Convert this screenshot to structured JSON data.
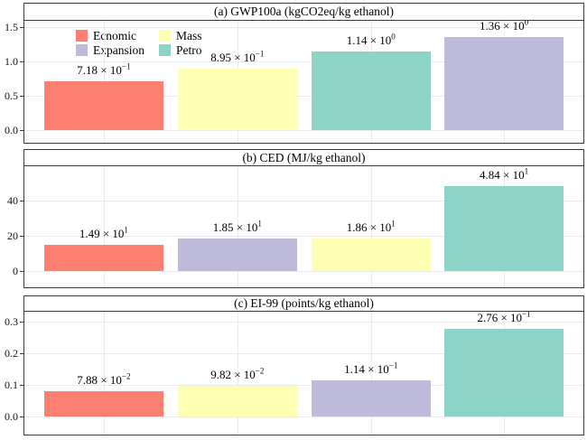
{
  "figure": {
    "background": "#ffffff",
    "value_label_times": " × 10",
    "colors_by_category": {
      "Ecnomic": "#FB8072",
      "Expansion": "#BEBADA",
      "Mass": "#FFFFB3",
      "Petro": "#8DD3C7"
    },
    "legend": {
      "position": "inside top-left of panel a",
      "items": [
        {
          "label": "Ecnomic",
          "color": "#FB8072"
        },
        {
          "label": "Mass",
          "color": "#FFFFB3"
        },
        {
          "label": "Expansion",
          "color": "#BEBADA"
        },
        {
          "label": "Petro",
          "color": "#8DD3C7"
        }
      ]
    }
  },
  "chart_data": [
    {
      "type": "bar",
      "title": "(a) GWP100a (kgCO2eq/kg ethanol)",
      "categories": [
        "Ecnomic",
        "Mass",
        "Petro",
        "Expansion"
      ],
      "values": [
        0.718,
        0.895,
        1.14,
        1.36
      ],
      "bar_labels": [
        {
          "mantissa": "7.18",
          "exponent": "-1"
        },
        {
          "mantissa": "8.95",
          "exponent": "-1"
        },
        {
          "mantissa": "1.14",
          "exponent": "0"
        },
        {
          "mantissa": "1.36",
          "exponent": "0"
        }
      ],
      "xlabel": "",
      "ylabel": "",
      "yticks": [
        0,
        0.5,
        1.0,
        1.5
      ],
      "ytick_labels": [
        "0.0",
        "0.5",
        "1.0",
        "1.5"
      ],
      "ylim": [
        -0.18,
        1.59
      ],
      "grid": true,
      "legend_shown": true
    },
    {
      "type": "bar",
      "title": "(b) CED (MJ/kg ethanol)",
      "categories": [
        "Ecnomic",
        "Expansion",
        "Mass",
        "Petro"
      ],
      "values": [
        14.9,
        18.5,
        18.6,
        48.4
      ],
      "bar_labels": [
        {
          "mantissa": "1.49",
          "exponent": "1"
        },
        {
          "mantissa": "1.85",
          "exponent": "1"
        },
        {
          "mantissa": "1.86",
          "exponent": "1"
        },
        {
          "mantissa": "4.84",
          "exponent": "1"
        }
      ],
      "xlabel": "",
      "ylabel": "",
      "yticks": [
        0,
        20,
        40
      ],
      "ytick_labels": [
        "0",
        "20",
        "40"
      ],
      "ylim": [
        -9.4,
        59.7
      ],
      "grid": true,
      "legend_shown": false
    },
    {
      "type": "bar",
      "title": "(c) EI-99 (points/kg ethanol)",
      "categories": [
        "Ecnomic",
        "Mass",
        "Expansion",
        "Petro"
      ],
      "values": [
        0.0788,
        0.0982,
        0.114,
        0.276
      ],
      "bar_labels": [
        {
          "mantissa": "7.88",
          "exponent": "-2"
        },
        {
          "mantissa": "9.82",
          "exponent": "-2"
        },
        {
          "mantissa": "1.14",
          "exponent": "-1"
        },
        {
          "mantissa": "2.76",
          "exponent": "-1"
        }
      ],
      "xlabel": "",
      "ylabel": "",
      "yticks": [
        0,
        0.1,
        0.2,
        0.3
      ],
      "ytick_labels": [
        "0.0",
        "0.1",
        "0.2",
        "0.3"
      ],
      "ylim": [
        -0.057,
        0.331
      ],
      "grid": true,
      "legend_shown": false
    }
  ]
}
